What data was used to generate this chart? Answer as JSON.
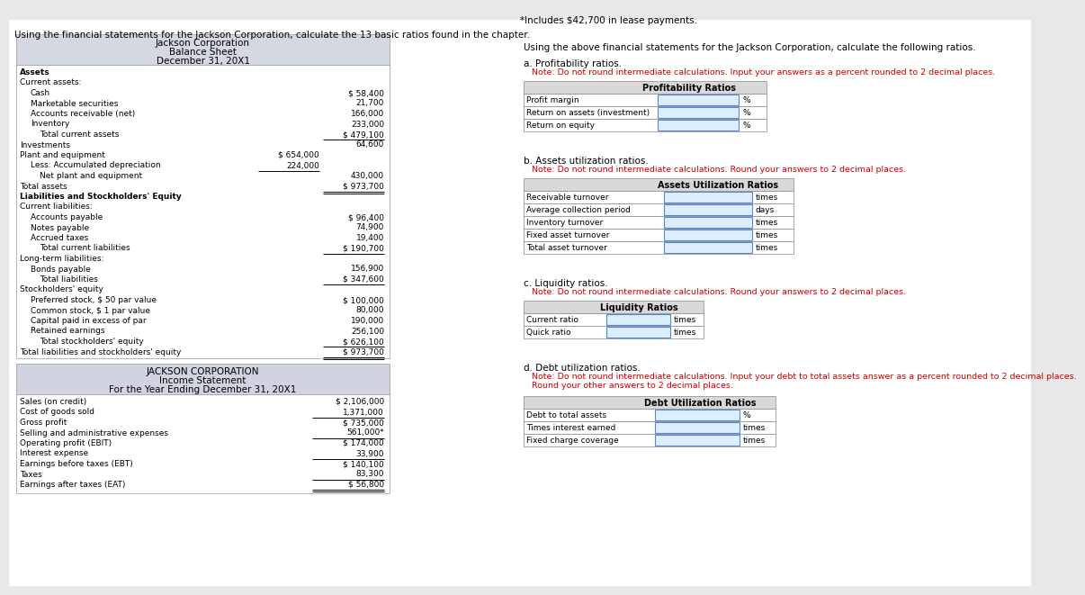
{
  "bg_color": "#e8e8e8",
  "header_intro": "Using the financial statements for the Jackson Corporation, calculate the 13 basic ratios found in the chapter.",
  "right_note": "*Includes $42,700 in lease payments.",
  "right_intro": "Using the above financial statements for the Jackson Corporation, calculate the following ratios.",
  "balance_sheet_title": [
    "Jackson Corporation",
    "Balance Sheet",
    "December 31, 20X1"
  ],
  "income_title": [
    "JACKSON CORPORATION",
    "Income Statement",
    "For the Year Ending December 31, 20X1"
  ],
  "bs_header_bg": "#d4d8e2",
  "is_header_bg": "#d0d4e0",
  "section_a_label": "a. Profitability ratios.",
  "section_a_note": "   Note: Do not round intermediate calculations. Input your answers as a percent rounded to 2 decimal places.",
  "section_b_label": "b. Assets utilization ratios.",
  "section_b_note": "   Note: Do not round intermediate calculations. Round your answers to 2 decimal places.",
  "section_c_label": "c. Liquidity ratios.",
  "section_c_note": "   Note: Do not round intermediate calculations. Round your answers to 2 decimal places.",
  "section_d_label": "d. Debt utilization ratios.",
  "section_d_note1": "   Note: Do not round intermediate calculations. Input your debt to total assets answer as a percent rounded to 2 decimal places.",
  "section_d_note2": "   Round your other answers to 2 decimal places.",
  "profitability_title": "Profitability Ratios",
  "profitability_rows": [
    [
      "Profit margin",
      "%"
    ],
    [
      "Return on assets (investment)",
      "%"
    ],
    [
      "Return on equity",
      "%"
    ]
  ],
  "assets_util_title": "Assets Utilization Ratios",
  "assets_util_rows": [
    [
      "Receivable turnover",
      "times"
    ],
    [
      "Average collection period",
      "days"
    ],
    [
      "Inventory turnover",
      "times"
    ],
    [
      "Fixed asset turnover",
      "times"
    ],
    [
      "Total asset turnover",
      "times"
    ]
  ],
  "liquidity_title": "Liquidity Ratios",
  "liquidity_rows": [
    [
      "Current ratio",
      "times"
    ],
    [
      "Quick ratio",
      "times"
    ]
  ],
  "debt_util_title": "Debt Utilization Ratios",
  "debt_util_rows": [
    [
      "Debt to total assets",
      "%"
    ],
    [
      "Times interest earned",
      "times"
    ],
    [
      "Fixed charge coverage",
      "times"
    ]
  ],
  "balance_sheet_data": [
    {
      "label": "Assets",
      "indent": 0,
      "bold": true,
      "value": "",
      "value2": ""
    },
    {
      "label": "Current assets:",
      "indent": 0,
      "bold": false,
      "value": "",
      "value2": ""
    },
    {
      "label": "Cash",
      "indent": 1,
      "bold": false,
      "value": "$ 58,400",
      "value2": ""
    },
    {
      "label": "Marketable securities",
      "indent": 1,
      "bold": false,
      "value": "21,700",
      "value2": ""
    },
    {
      "label": "Accounts receivable (net)",
      "indent": 1,
      "bold": false,
      "value": "166,000",
      "value2": ""
    },
    {
      "label": "Inventory",
      "indent": 1,
      "bold": false,
      "value": "233,000",
      "value2": ""
    },
    {
      "label": "Total current assets",
      "indent": 2,
      "bold": false,
      "value": "$ 479,100",
      "value2": "",
      "underline": true
    },
    {
      "label": "Investments",
      "indent": 0,
      "bold": false,
      "value": "64,600",
      "value2": ""
    },
    {
      "label": "Plant and equipment",
      "indent": 0,
      "bold": false,
      "value": "",
      "value2": "$ 654,000"
    },
    {
      "label": "Less: Accumulated depreciation",
      "indent": 1,
      "bold": false,
      "value": "",
      "value2": "224,000",
      "underline2": true
    },
    {
      "label": "Net plant and equipment",
      "indent": 2,
      "bold": false,
      "value": "430,000",
      "value2": ""
    },
    {
      "label": "Total assets",
      "indent": 0,
      "bold": false,
      "value": "$ 973,700",
      "value2": "",
      "underline": true,
      "double": true
    },
    {
      "label": "Liabilities and Stockholders' Equity",
      "indent": 0,
      "bold": true,
      "value": "",
      "value2": ""
    },
    {
      "label": "Current liabilities:",
      "indent": 0,
      "bold": false,
      "value": "",
      "value2": ""
    },
    {
      "label": "Accounts payable",
      "indent": 1,
      "bold": false,
      "value": "$ 96,400",
      "value2": ""
    },
    {
      "label": "Notes payable",
      "indent": 1,
      "bold": false,
      "value": "74,900",
      "value2": ""
    },
    {
      "label": "Accrued taxes",
      "indent": 1,
      "bold": false,
      "value": "19,400",
      "value2": ""
    },
    {
      "label": "Total current liabilities",
      "indent": 2,
      "bold": false,
      "value": "$ 190,700",
      "value2": "",
      "underline": true
    },
    {
      "label": "Long-term liabilities:",
      "indent": 0,
      "bold": false,
      "value": "",
      "value2": ""
    },
    {
      "label": "Bonds payable",
      "indent": 1,
      "bold": false,
      "value": "156,900",
      "value2": ""
    },
    {
      "label": "Total liabilities",
      "indent": 2,
      "bold": false,
      "value": "$ 347,600",
      "value2": "",
      "underline": true
    },
    {
      "label": "Stockholders' equity",
      "indent": 0,
      "bold": false,
      "value": "",
      "value2": ""
    },
    {
      "label": "Preferred stock, $ 50 par value",
      "indent": 1,
      "bold": false,
      "value": "$ 100,000",
      "value2": ""
    },
    {
      "label": "Common stock, $ 1 par value",
      "indent": 1,
      "bold": false,
      "value": "80,000",
      "value2": ""
    },
    {
      "label": "Capital paid in excess of par",
      "indent": 1,
      "bold": false,
      "value": "190,000",
      "value2": ""
    },
    {
      "label": "Retained earnings",
      "indent": 1,
      "bold": false,
      "value": "256,100",
      "value2": ""
    },
    {
      "label": "Total stockholders' equity",
      "indent": 2,
      "bold": false,
      "value": "$ 626,100",
      "value2": "",
      "underline": true
    },
    {
      "label": "Total liabilities and stockholders' equity",
      "indent": 0,
      "bold": false,
      "value": "$ 973,700",
      "value2": "",
      "underline": true,
      "double": true
    }
  ],
  "income_data": [
    {
      "label": "Sales (on credit)",
      "value": "$ 2,106,000",
      "underline": false
    },
    {
      "label": "Cost of goods sold",
      "value": "1,371,000",
      "underline": true
    },
    {
      "label": "Gross profit",
      "value": "$ 735,000",
      "underline": false
    },
    {
      "label": "Selling and administrative expenses",
      "value": "561,000*",
      "underline": true
    },
    {
      "label": "Operating profit (EBIT)",
      "value": "$ 174,000",
      "underline": false
    },
    {
      "label": "Interest expense",
      "value": "33,900",
      "underline": true
    },
    {
      "label": "Earnings before taxes (EBT)",
      "value": "$ 140,100",
      "underline": false
    },
    {
      "label": "Taxes",
      "value": "83,300",
      "underline": true
    },
    {
      "label": "Earnings after taxes (EAT)",
      "value": "$ 56,800",
      "underline": true,
      "double": true
    }
  ]
}
